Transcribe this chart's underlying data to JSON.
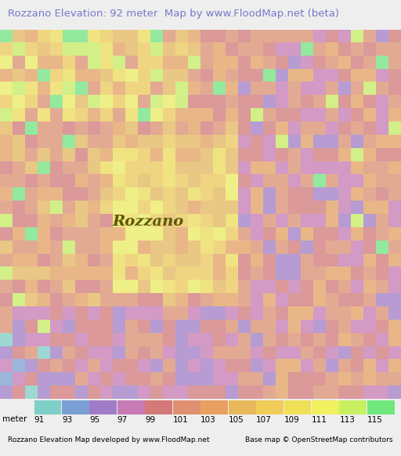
{
  "title": "Rozzano Elevation: 92 meter  Map by www.FloodMap.net (beta)",
  "title_color": "#7777cc",
  "title_fontsize": 9.5,
  "bg_color": "#eeeeee",
  "legend_labels": [
    "91",
    "93",
    "95",
    "97",
    "99",
    "101",
    "103",
    "105",
    "107",
    "109",
    "111",
    "113",
    "115"
  ],
  "legend_colors": [
    "#7ecfc8",
    "#7b9fd4",
    "#a07cc8",
    "#c87ab4",
    "#d47878",
    "#e09070",
    "#e8a060",
    "#e8b85a",
    "#f0cc58",
    "#f0e058",
    "#f0f060",
    "#c8f060",
    "#70e87e"
  ],
  "footer_left": "Rozzano Elevation Map developed by www.FloodMap.net",
  "footer_right": "Base map © OpenStreetMap contributors",
  "footer_fontsize": 6.5,
  "legend_label_fontsize": 7.5,
  "legend_title": "meter"
}
